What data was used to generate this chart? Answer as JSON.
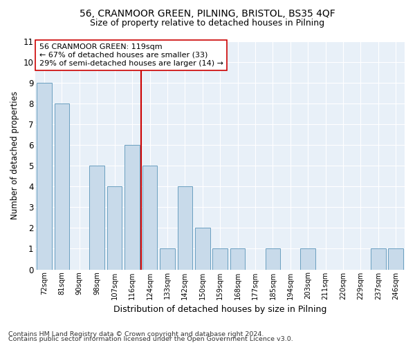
{
  "title1": "56, CRANMOOR GREEN, PILNING, BRISTOL, BS35 4QF",
  "title2": "Size of property relative to detached houses in Pilning",
  "xlabel": "Distribution of detached houses by size in Pilning",
  "ylabel": "Number of detached properties",
  "categories": [
    "72sqm",
    "81sqm",
    "90sqm",
    "98sqm",
    "107sqm",
    "116sqm",
    "124sqm",
    "133sqm",
    "142sqm",
    "150sqm",
    "159sqm",
    "168sqm",
    "177sqm",
    "185sqm",
    "194sqm",
    "203sqm",
    "211sqm",
    "220sqm",
    "229sqm",
    "237sqm",
    "246sqm"
  ],
  "values": [
    9,
    8,
    0,
    5,
    4,
    6,
    5,
    1,
    4,
    2,
    1,
    1,
    0,
    1,
    0,
    1,
    0,
    0,
    0,
    1,
    1
  ],
  "bar_color": "#c8daea",
  "bar_edge_color": "#6a9fc0",
  "highlight_index": 6,
  "annotation_line1": "56 CRANMOOR GREEN: 119sqm",
  "annotation_line2": "← 67% of detached houses are smaller (33)",
  "annotation_line3": "29% of semi-detached houses are larger (14) →",
  "vline_color": "#cc0000",
  "ylim": [
    0,
    11
  ],
  "yticks": [
    0,
    1,
    2,
    3,
    4,
    5,
    6,
    7,
    8,
    9,
    10,
    11
  ],
  "footnote1": "Contains HM Land Registry data © Crown copyright and database right 2024.",
  "footnote2": "Contains public sector information licensed under the Open Government Licence v3.0.",
  "plot_bg_color": "#e8f0f8"
}
